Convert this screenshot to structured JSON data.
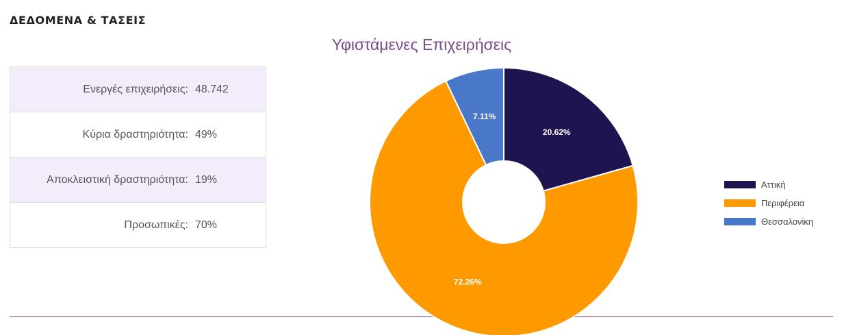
{
  "section_heading": "ΔΕΔΟΜΕΝΑ & ΤΑΣΕΙΣ",
  "stats": [
    {
      "label": "Ενεργές επιχειρήσεις:",
      "value": "48.742"
    },
    {
      "label": "Κύρια δραστηριότητα:",
      "value": "49%"
    },
    {
      "label": "Αποκλειστική δραστηριότητα:",
      "value": "19%"
    },
    {
      "label": "Προσωπικές:",
      "value": "70%"
    }
  ],
  "chart_data": {
    "type": "pie",
    "title": "Υφιστάμενες Επιχειρήσεις",
    "donut": true,
    "legend_position": "right",
    "slices": [
      {
        "name": "Αττική",
        "value": 20.62,
        "label": "20.62%",
        "color": "#1f1450"
      },
      {
        "name": "Περιφέρεια",
        "value": 72.26,
        "label": "72.26%",
        "color": "#ff9900"
      },
      {
        "name": "Θεσσαλονίκη",
        "value": 7.11,
        "label": "7.11%",
        "color": "#4a78c8"
      }
    ]
  },
  "colors": {
    "accent": "#7a4a8e",
    "divider": "#6b3c7c",
    "row_shade": "#f3ecfa"
  }
}
